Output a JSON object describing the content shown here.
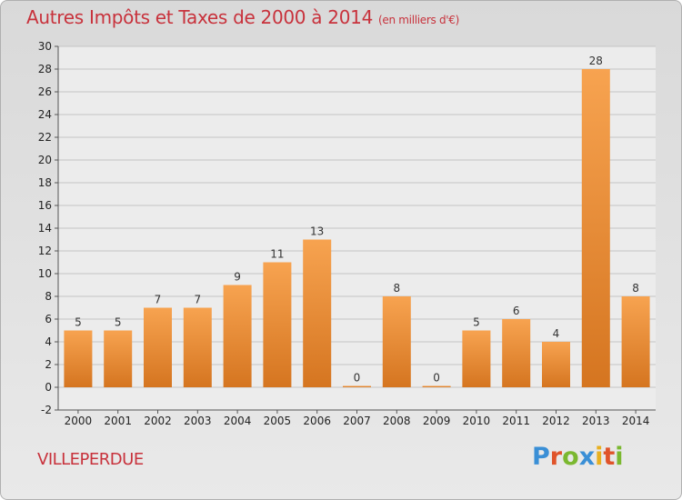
{
  "title": "Autres Impôts et Taxes de 2000 à 2014",
  "unit": "(en milliers d'€)",
  "commune": "VILLEPERDUE",
  "logo": {
    "letters": [
      "P",
      "r",
      "o",
      "x",
      "i",
      "t",
      "i"
    ],
    "colors": [
      "#3a8fd6",
      "#e0542a",
      "#7bb830",
      "#3a8fd6",
      "#e8b020",
      "#e0542a",
      "#7bb830"
    ]
  },
  "colors": {
    "bar_top": "#f7a350",
    "bar_bottom": "#d57520",
    "title": "#c8323c"
  },
  "chart_data": {
    "type": "bar",
    "categories": [
      "2000",
      "2001",
      "2002",
      "2003",
      "2004",
      "2005",
      "2006",
      "2007",
      "2008",
      "2009",
      "2010",
      "2011",
      "2012",
      "2013",
      "2014"
    ],
    "values": [
      5,
      5,
      7,
      7,
      9,
      11,
      13,
      0,
      8,
      0,
      5,
      6,
      4,
      28,
      8
    ],
    "title": "Autres Impôts et Taxes de 2000 à 2014",
    "ylabel": "",
    "ylim": [
      -2,
      30
    ],
    "yticks": [
      -2,
      0,
      2,
      4,
      6,
      8,
      10,
      12,
      14,
      16,
      18,
      20,
      22,
      24,
      26,
      28,
      30
    ],
    "grid": true,
    "legend": "none"
  }
}
